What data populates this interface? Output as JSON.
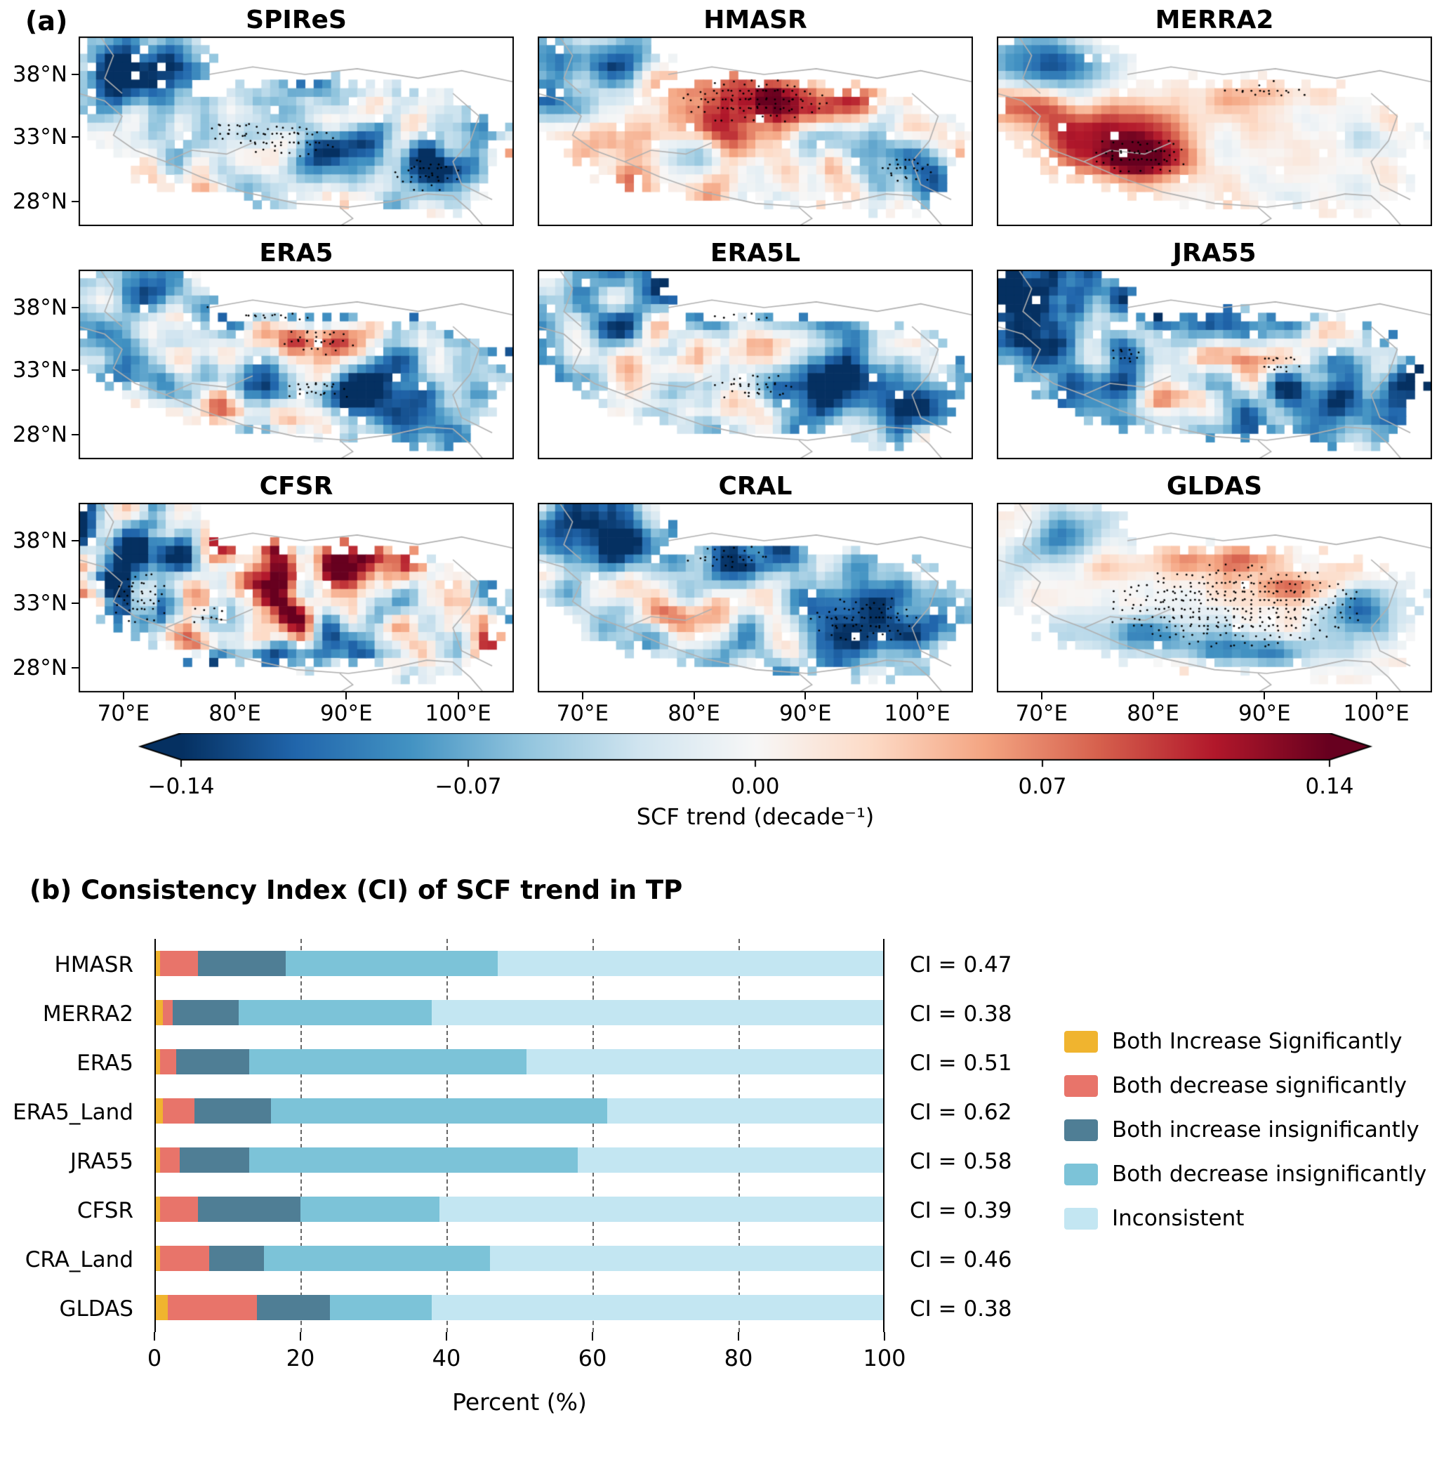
{
  "chart_data": [
    {
      "type": "heatmap",
      "panel_label": "(a)",
      "description": "3x3 grid of maps of snow cover fraction trend over the Tibetan Plateau for nine datasets; blue = decreasing trend, red = increasing trend, black stippling = statistically significant areas",
      "maps": [
        {
          "name": "SPIReS",
          "pattern": "blue declines along plateau margins and northwest arm, pale mixed center with weak pink, stippled patches in south-center and southeast",
          "seed": 11,
          "bias": -0.12,
          "noise": 0.5,
          "blobs": [
            [
              0.13,
              0.15,
              0.17,
              0.18,
              -0.75
            ],
            [
              0.45,
              0.2,
              0.25,
              0.1,
              -0.35
            ],
            [
              0.55,
              0.42,
              0.2,
              0.12,
              0.3
            ],
            [
              0.62,
              0.6,
              0.1,
              0.1,
              -0.5
            ],
            [
              0.83,
              0.72,
              0.12,
              0.16,
              -0.75
            ],
            [
              0.3,
              0.55,
              0.15,
              0.12,
              -0.2
            ]
          ],
          "stipple": [
            [
              0.48,
              0.55,
              0.15,
              0.1
            ],
            [
              0.8,
              0.73,
              0.09,
              0.1
            ],
            [
              0.36,
              0.5,
              0.08,
              0.06
            ]
          ]
        },
        {
          "name": "HMASR",
          "pattern": "large stippled pink increase across central-north plateau, blue in west and southeast",
          "seed": 22,
          "bias": 0.02,
          "noise": 0.45,
          "blobs": [
            [
              0.5,
              0.33,
              0.26,
              0.16,
              0.7
            ],
            [
              0.33,
              0.5,
              0.18,
              0.12,
              0.35
            ],
            [
              0.1,
              0.3,
              0.13,
              0.2,
              -0.6
            ],
            [
              0.14,
              0.14,
              0.12,
              0.12,
              -0.5
            ],
            [
              0.68,
              0.55,
              0.09,
              0.1,
              -0.65
            ],
            [
              0.85,
              0.7,
              0.1,
              0.14,
              -0.8
            ]
          ],
          "stipple": [
            [
              0.5,
              0.34,
              0.22,
              0.13
            ],
            [
              0.85,
              0.7,
              0.08,
              0.1
            ]
          ]
        },
        {
          "name": "MERRA2",
          "pattern": "mostly pale, strong stippled red increase in southwest, deep blue northwest arm, stippled oval in north-center",
          "seed": 33,
          "bias": 0.02,
          "noise": 0.18,
          "blobs": [
            [
              0.12,
              0.14,
              0.14,
              0.16,
              -0.85
            ],
            [
              0.05,
              0.35,
              0.1,
              0.1,
              0.5
            ],
            [
              0.27,
              0.52,
              0.17,
              0.16,
              0.9
            ],
            [
              0.33,
              0.66,
              0.12,
              0.1,
              0.8
            ],
            [
              0.6,
              0.3,
              0.12,
              0.07,
              0.25
            ],
            [
              0.85,
              0.55,
              0.08,
              0.1,
              -0.2
            ]
          ],
          "stipple": [
            [
              0.33,
              0.63,
              0.13,
              0.12
            ],
            [
              0.62,
              0.29,
              0.11,
              0.05
            ]
          ]
        },
        {
          "name": "ERA5",
          "pattern": "widespread blue decrease with stippled north band, red center patch and pink southern band",
          "seed": 44,
          "bias": -0.32,
          "noise": 0.6,
          "blobs": [
            [
              0.5,
              0.2,
              0.28,
              0.1,
              -0.5
            ],
            [
              0.55,
              0.38,
              0.13,
              0.1,
              0.95
            ],
            [
              0.3,
              0.45,
              0.15,
              0.1,
              0.5
            ],
            [
              0.35,
              0.75,
              0.2,
              0.08,
              0.55
            ],
            [
              0.75,
              0.6,
              0.14,
              0.18,
              -0.6
            ],
            [
              0.9,
              0.45,
              0.08,
              0.1,
              0.3
            ]
          ],
          "stipple": [
            [
              0.55,
              0.38,
              0.1,
              0.08
            ],
            [
              0.42,
              0.22,
              0.18,
              0.07
            ],
            [
              0.55,
              0.63,
              0.1,
              0.07
            ]
          ]
        },
        {
          "name": "ERA5L",
          "pattern": "blue dominant like ERA5, red central patch, stippled south-center, deep blue southeast",
          "seed": 55,
          "bias": -0.3,
          "noise": 0.55,
          "blobs": [
            [
              0.5,
              0.2,
              0.3,
              0.1,
              -0.45
            ],
            [
              0.53,
              0.4,
              0.13,
              0.1,
              0.8
            ],
            [
              0.3,
              0.5,
              0.14,
              0.1,
              0.4
            ],
            [
              0.72,
              0.62,
              0.16,
              0.18,
              -0.75
            ],
            [
              0.38,
              0.72,
              0.15,
              0.08,
              0.35
            ]
          ],
          "stipple": [
            [
              0.5,
              0.62,
              0.13,
              0.08
            ],
            [
              0.47,
              0.2,
              0.18,
              0.07
            ]
          ]
        },
        {
          "name": "JRA55",
          "pattern": "strong blue decrease almost everywhere with scattered red patches in the interior",
          "seed": 66,
          "bias": -0.5,
          "noise": 0.6,
          "blobs": [
            [
              0.55,
              0.48,
              0.13,
              0.1,
              0.75
            ],
            [
              0.42,
              0.68,
              0.13,
              0.08,
              0.55
            ],
            [
              0.75,
              0.3,
              0.08,
              0.08,
              0.5
            ],
            [
              0.3,
              0.35,
              0.1,
              0.08,
              0.3
            ],
            [
              0.85,
              0.6,
              0.1,
              0.14,
              -0.4
            ],
            [
              0.12,
              0.2,
              0.14,
              0.18,
              -0.4
            ]
          ],
          "stipple": [
            [
              0.3,
              0.45,
              0.06,
              0.06
            ],
            [
              0.65,
              0.5,
              0.07,
              0.06
            ]
          ]
        },
        {
          "name": "CFSR",
          "pattern": "very noisy mix, reddish center band, deep blue western and southern rim with stippling",
          "seed": 77,
          "bias": -0.02,
          "noise": 0.95,
          "blobs": [
            [
              0.5,
              0.38,
              0.28,
              0.14,
              0.45
            ],
            [
              0.12,
              0.45,
              0.1,
              0.22,
              -0.8
            ],
            [
              0.2,
              0.25,
              0.1,
              0.12,
              -0.6
            ],
            [
              0.45,
              0.82,
              0.28,
              0.07,
              -0.65
            ],
            [
              0.68,
              0.72,
              0.12,
              0.1,
              -0.5
            ],
            [
              0.85,
              0.35,
              0.08,
              0.1,
              0.3
            ]
          ],
          "stipple": [
            [
              0.14,
              0.5,
              0.08,
              0.16
            ],
            [
              0.3,
              0.6,
              0.06,
              0.06
            ]
          ]
        },
        {
          "name": "CRAL",
          "pattern": "blue northwest arm and large stippled deep blue southeast, red patch in southwest-center",
          "seed": 88,
          "bias": -0.22,
          "noise": 0.5,
          "blobs": [
            [
              0.13,
              0.15,
              0.16,
              0.18,
              -0.8
            ],
            [
              0.42,
              0.3,
              0.16,
              0.1,
              -0.5
            ],
            [
              0.35,
              0.58,
              0.11,
              0.09,
              0.85
            ],
            [
              0.25,
              0.45,
              0.1,
              0.08,
              0.3
            ],
            [
              0.75,
              0.6,
              0.17,
              0.2,
              -0.85
            ],
            [
              0.55,
              0.5,
              0.12,
              0.08,
              0.1
            ]
          ],
          "stipple": [
            [
              0.75,
              0.62,
              0.15,
              0.15
            ],
            [
              0.44,
              0.29,
              0.12,
              0.07
            ]
          ]
        },
        {
          "name": "GLDAS",
          "pattern": "pale stippled interior covering most of plateau, pink patches north-center, blue rim in south and southeast",
          "seed": 99,
          "bias": 0.04,
          "noise": 0.22,
          "blobs": [
            [
              0.55,
              0.3,
              0.14,
              0.08,
              0.45
            ],
            [
              0.68,
              0.45,
              0.1,
              0.08,
              0.55
            ],
            [
              0.15,
              0.2,
              0.12,
              0.16,
              -0.6
            ],
            [
              0.25,
              0.35,
              0.08,
              0.08,
              0.4
            ],
            [
              0.3,
              0.68,
              0.18,
              0.1,
              -0.65
            ],
            [
              0.6,
              0.78,
              0.18,
              0.08,
              -0.7
            ],
            [
              0.85,
              0.58,
              0.09,
              0.14,
              -0.85
            ]
          ],
          "stipple": [
            [
              0.55,
              0.55,
              0.36,
              0.26
            ]
          ]
        }
      ],
      "lat_ticks": [
        {
          "label": "38°N",
          "f": 0.2
        },
        {
          "label": "33°N",
          "f": 0.53
        },
        {
          "label": "28°N",
          "f": 0.87
        }
      ],
      "lon_ticks": [
        {
          "label": "70°E",
          "f": 0.103
        },
        {
          "label": "80°E",
          "f": 0.359
        },
        {
          "label": "90°E",
          "f": 0.615
        },
        {
          "label": "100°E",
          "f": 0.872
        }
      ],
      "colorbar": {
        "min": -0.14,
        "max": 0.14,
        "ticks": [
          "−0.14",
          "−0.07",
          "0.00",
          "0.07",
          "0.14"
        ],
        "tick_values": [
          -0.14,
          -0.07,
          0,
          0.07,
          0.14
        ],
        "label": "SCF trend (decade⁻¹)",
        "palette": [
          "#053061",
          "#2166ac",
          "#4393c3",
          "#92c5de",
          "#d1e5f0",
          "#f7f7f7",
          "#fddbc7",
          "#f4a582",
          "#d6604d",
          "#b2182b",
          "#67001f"
        ]
      }
    },
    {
      "type": "bar",
      "orientation": "horizontal",
      "stacked": true,
      "panel_label": "(b)",
      "title": "(b) Consistency Index (CI) of SCF trend in TP",
      "categories": [
        "HMASR",
        "MERRA2",
        "ERA5",
        "ERA5_Land",
        "JRA55",
        "CFSR",
        "CRA_Land",
        "GLDAS"
      ],
      "ci_values": [
        "CI = 0.47",
        "CI = 0.38",
        "CI = 0.51",
        "CI = 0.62",
        "CI = 0.58",
        "CI = 0.39",
        "CI = 0.46",
        "CI = 0.38"
      ],
      "series": [
        {
          "name": "Both Increase Significantly",
          "color": "#f0b42f",
          "values": [
            0.8,
            1.2,
            0.8,
            1.2,
            0.8,
            0.8,
            0.8,
            1.8
          ]
        },
        {
          "name": "Both decrease significantly",
          "color": "#e8746a",
          "values": [
            5.2,
            1.3,
            2.2,
            4.3,
            2.7,
            5.2,
            6.7,
            12.2
          ]
        },
        {
          "name": "Both increase insignificantly",
          "color": "#4f7e95",
          "values": [
            12,
            9,
            10,
            10.5,
            9.5,
            14,
            7.5,
            10
          ]
        },
        {
          "name": "Both decrease insignificantly",
          "color": "#7cc3d8",
          "values": [
            29,
            26.5,
            38,
            46,
            45,
            19,
            31,
            14
          ]
        },
        {
          "name": "Inconsistent",
          "color": "#c3e6f2",
          "values": [
            53,
            62,
            49,
            38,
            42,
            61,
            54,
            62
          ]
        }
      ],
      "xlabel": "Percent (%)",
      "x_ticks": [
        0,
        20,
        40,
        60,
        80,
        100
      ],
      "xlim": [
        0,
        100
      ],
      "gridlines": [
        20,
        40,
        60,
        80
      ],
      "legend_position": "right"
    }
  ]
}
